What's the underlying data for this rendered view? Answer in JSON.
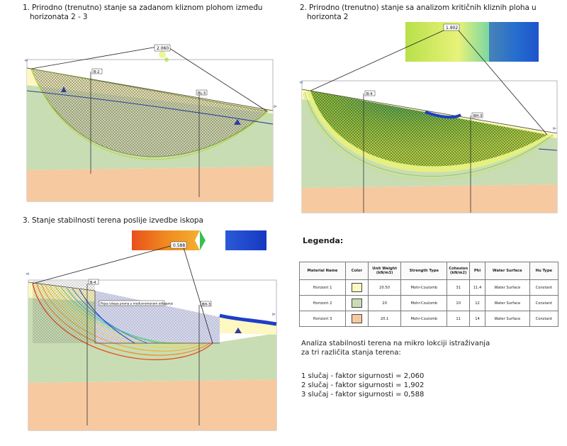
{
  "panels": [
    {
      "title_line1": "1. Prirodno (trenutno) stanje sa zadanom kliznom plohom između",
      "title_line2": "horizonata 2 - 3",
      "factor_label": "2.060",
      "point_a": "B-2",
      "point_b": "BL-3"
    },
    {
      "title_line1": "2. Prirodno (trenutno) stanje sa analizom kritičnih kliznih ploha u",
      "title_line2": "horizonta 2",
      "factor_label": "1.902",
      "point_a": "B-4",
      "point_b": "BH-3"
    },
    {
      "title_line1": "3. Stanje stabilnosti terena poslije izvedbe iskopa",
      "factor_label": "0.588",
      "point_a": "B-4",
      "point_b": "BH-3",
      "note": "Pojas iskopa prema u međuvremenom odlaganju"
    }
  ],
  "legend": {
    "title": "Legenda:",
    "columns": [
      "Material Name",
      "Color",
      "Unit Weight (kN/m3)",
      "Strength Type",
      "Cohesion (kN/m2)",
      "Phi",
      "Water Surface",
      "Hu Type"
    ],
    "rows": [
      {
        "name": "Horizont 1",
        "color": "#fdf7c2",
        "unit_weight": "20.50",
        "strength": "Mohr-Coulomb",
        "cohesion": "31",
        "phi": "11.4",
        "water": "Water Surface",
        "hu": "Constant"
      },
      {
        "name": "Horizont 2",
        "color": "#c9ddb4",
        "unit_weight": "20",
        "strength": "Mohr-Coulomb",
        "cohesion": "10",
        "phi": "12",
        "water": "Water Surface",
        "hu": "Constant"
      },
      {
        "name": "Horizont 3",
        "color": "#f7c9a0",
        "unit_weight": "20.1",
        "strength": "Mohr-Coulomb",
        "cohesion": "11",
        "phi": "14",
        "water": "Water Surface",
        "hu": "Constant"
      }
    ]
  },
  "summary": {
    "line1": "Analiza stabilnosti terena na mikro lokciji istraživanja",
    "line2": "za tri različita stanja terena:",
    "case1": "1 slučaj - faktor sigurnosti = 2,060",
    "case2": "2 slučaj - faktor sigurnosti = 1,902",
    "case3": "3 slučaj - faktor sigurnosti = 0,588"
  },
  "colors": {
    "horizon1": "#fdf7c2",
    "horizon2": "#c9ddb4",
    "horizon3": "#f7c9a0",
    "slip_fill": "#9db74a",
    "water": "#2d3f9a",
    "excavation": "#d9dcf2"
  }
}
